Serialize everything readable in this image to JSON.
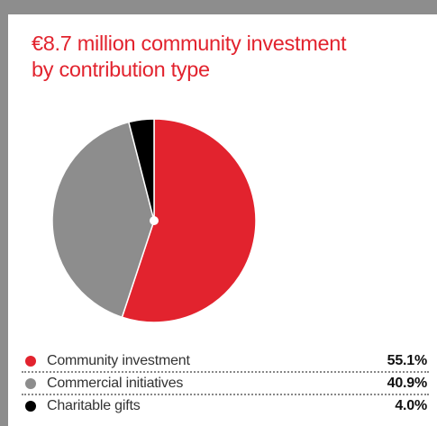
{
  "title_lines": [
    "€8.7 million community investment",
    "by contribution type"
  ],
  "colors": {
    "accent": "#e2232e",
    "grey": "#8d8d8d",
    "black": "#000000"
  },
  "chart_data": {
    "type": "pie",
    "title": "€8.7 million community investment by contribution type",
    "categories": [
      "Community investment",
      "Commercial initiatives",
      "Charitable gifts"
    ],
    "values": [
      55.1,
      40.9,
      4.0
    ],
    "value_labels": [
      "55.1%",
      "40.9%",
      "4.0%"
    ],
    "colors": [
      "#e2232e",
      "#8d8d8d",
      "#000000"
    ],
    "legend_position": "bottom"
  },
  "legend": [
    {
      "label": "Community investment",
      "value": "55.1%",
      "color": "#e2232e"
    },
    {
      "label": "Commercial initiatives",
      "value": "40.9%",
      "color": "#8d8d8d"
    },
    {
      "label": "Charitable gifts",
      "value": "4.0%",
      "color": "#000000"
    }
  ]
}
